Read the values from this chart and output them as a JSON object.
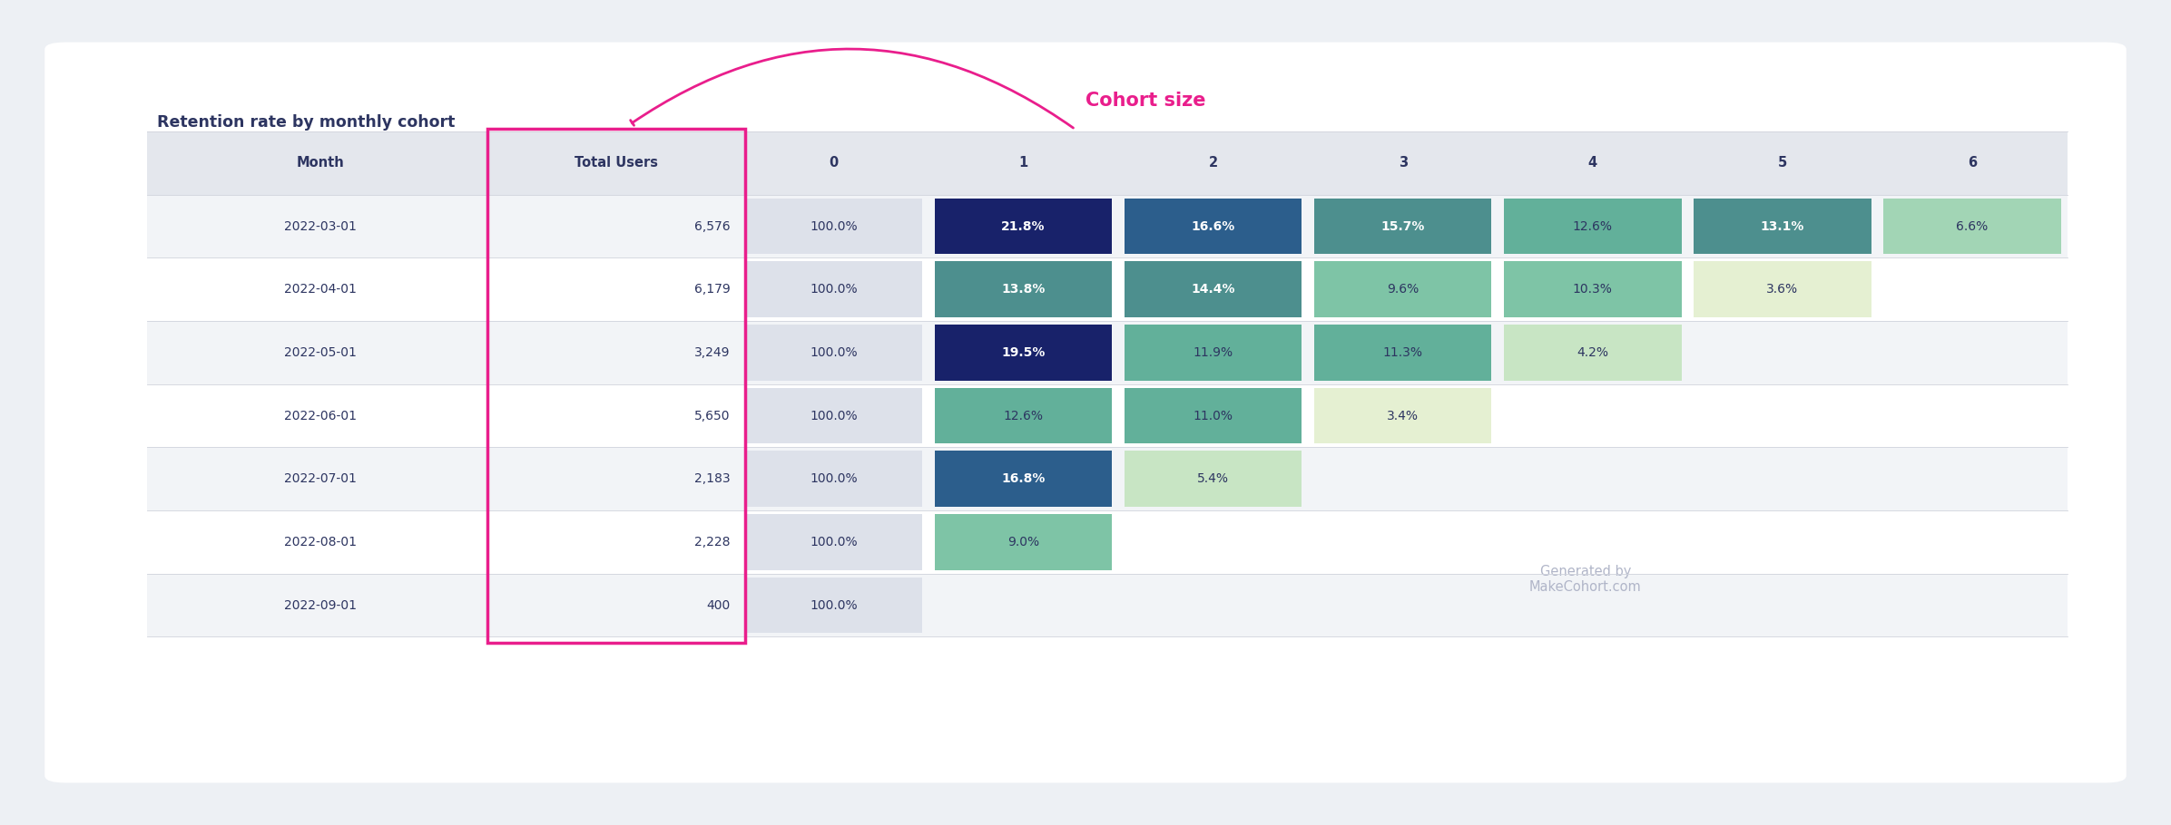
{
  "title": "Retention rate by monthly cohort",
  "cohort_size_label": "Cohort size",
  "watermark": "Generated by\nMakeCohort.com",
  "months": [
    "2022-03-01",
    "2022-04-01",
    "2022-05-01",
    "2022-06-01",
    "2022-07-01",
    "2022-08-01",
    "2022-09-01"
  ],
  "total_users": [
    6576,
    6179,
    3249,
    5650,
    2183,
    2228,
    400
  ],
  "col_headers": [
    "Month",
    "Total Users",
    "0",
    "1",
    "2",
    "3",
    "4",
    "5",
    "6"
  ],
  "data": [
    [
      100.0,
      21.8,
      16.6,
      15.7,
      12.6,
      13.1,
      6.6
    ],
    [
      100.0,
      13.8,
      14.4,
      9.6,
      10.3,
      3.6,
      null
    ],
    [
      100.0,
      19.5,
      11.9,
      11.3,
      4.2,
      null,
      null
    ],
    [
      100.0,
      12.6,
      11.0,
      3.4,
      null,
      null,
      null
    ],
    [
      100.0,
      16.8,
      5.4,
      null,
      null,
      null,
      null
    ],
    [
      100.0,
      9.0,
      null,
      null,
      null,
      null,
      null
    ],
    [
      100.0,
      null,
      null,
      null,
      null,
      null,
      null
    ]
  ],
  "outer_bg": "#edf0f4",
  "card_bg": "#ffffff",
  "header_bg": "#e4e7ed",
  "row_bg_odd": "#f2f4f7",
  "row_bg_even": "#ffffff",
  "title_color": "#2d3561",
  "header_text_color": "#2d3561",
  "month_text_color": "#2d3561",
  "total_text_color": "#2d3561",
  "annotation_color": "#e91e8c",
  "highlight_border_color": "#e91e8c",
  "watermark_color": "#b0b5c8",
  "grid_color": "#d0d3dc"
}
